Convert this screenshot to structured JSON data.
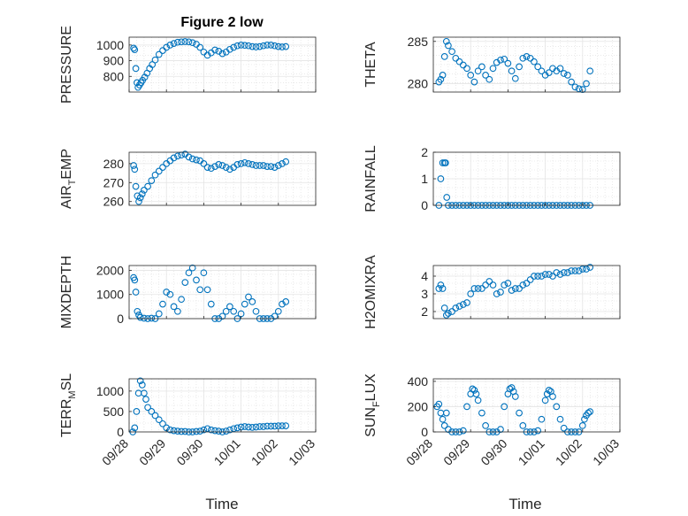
{
  "figure_title": "Figure 2 low",
  "x_axis_label": "Time",
  "x_tick_labels": [
    "09/28",
    "09/29",
    "09/30",
    "10/01",
    "10/02",
    "10/03"
  ],
  "colors": {
    "marker": "#0072BD",
    "axis": "#262626",
    "grid": "#dcdcdc"
  },
  "chart_data": [
    {
      "type": "scatter",
      "panel": "pressure",
      "ylabel": "PRESSURE",
      "ylim": [
        700,
        1050
      ],
      "yticks": [
        800,
        900,
        1000
      ],
      "xlim": [
        0,
        5
      ],
      "grid": true,
      "marker": "open-circle",
      "x": [
        0.12,
        0.15,
        0.18,
        0.21,
        0.24,
        0.28,
        0.32,
        0.36,
        0.42,
        0.48,
        0.55,
        0.62,
        0.7,
        0.8,
        0.9,
        1.0,
        1.1,
        1.2,
        1.3,
        1.4,
        1.5,
        1.6,
        1.7,
        1.8,
        1.9,
        2.0,
        2.1,
        2.2,
        2.3,
        2.4,
        2.5,
        2.6,
        2.7,
        2.8,
        2.9,
        3.0,
        3.1,
        3.2,
        3.3,
        3.4,
        3.5,
        3.6,
        3.7,
        3.8,
        3.9,
        4.0,
        4.1,
        4.2
      ],
      "y": [
        980,
        970,
        850,
        760,
        730,
        745,
        760,
        775,
        795,
        820,
        850,
        875,
        905,
        940,
        965,
        985,
        1000,
        1010,
        1018,
        1020,
        1022,
        1020,
        1015,
        1005,
        985,
        955,
        935,
        950,
        968,
        960,
        945,
        955,
        972,
        985,
        995,
        1000,
        998,
        995,
        990,
        988,
        990,
        995,
        1000,
        1000,
        995,
        990,
        988,
        990
      ]
    },
    {
      "type": "scatter",
      "panel": "theta",
      "ylabel": "THETA",
      "ylim": [
        279,
        285.5
      ],
      "yticks": [
        280,
        285
      ],
      "xlim": [
        0,
        5
      ],
      "grid": true,
      "marker": "open-circle",
      "x": [
        0.15,
        0.2,
        0.25,
        0.3,
        0.35,
        0.4,
        0.5,
        0.6,
        0.7,
        0.8,
        0.9,
        1.0,
        1.1,
        1.2,
        1.3,
        1.4,
        1.5,
        1.6,
        1.7,
        1.8,
        1.9,
        2.0,
        2.1,
        2.2,
        2.3,
        2.4,
        2.5,
        2.6,
        2.7,
        2.8,
        2.9,
        3.0,
        3.1,
        3.2,
        3.3,
        3.4,
        3.5,
        3.6,
        3.7,
        3.8,
        3.9,
        4.0,
        4.1,
        4.2
      ],
      "y": [
        280.2,
        280.5,
        281.0,
        283.2,
        285.0,
        284.5,
        283.8,
        283.0,
        282.6,
        282.2,
        281.8,
        281.0,
        280.2,
        281.5,
        282.0,
        281.0,
        280.5,
        281.8,
        282.5,
        282.8,
        282.9,
        282.4,
        281.5,
        280.6,
        282.0,
        283.0,
        283.2,
        283.0,
        282.6,
        282.0,
        281.5,
        281.0,
        281.3,
        281.8,
        281.5,
        281.8,
        281.2,
        281.0,
        280.2,
        279.6,
        279.4,
        279.3,
        280.0,
        281.5
      ]
    },
    {
      "type": "scatter",
      "panel": "air_temp",
      "ylabel": "AIR_TEMP",
      "ylim": [
        258,
        286
      ],
      "yticks": [
        260,
        270,
        280
      ],
      "xlim": [
        0,
        5
      ],
      "grid": true,
      "marker": "open-circle",
      "x": [
        0.12,
        0.15,
        0.18,
        0.22,
        0.26,
        0.3,
        0.35,
        0.4,
        0.5,
        0.6,
        0.7,
        0.8,
        0.9,
        1.0,
        1.1,
        1.2,
        1.3,
        1.4,
        1.5,
        1.6,
        1.7,
        1.8,
        1.9,
        2.0,
        2.1,
        2.2,
        2.3,
        2.4,
        2.5,
        2.6,
        2.7,
        2.8,
        2.9,
        3.0,
        3.1,
        3.2,
        3.3,
        3.4,
        3.5,
        3.6,
        3.7,
        3.8,
        3.9,
        4.0,
        4.1,
        4.2
      ],
      "y": [
        279,
        277,
        268,
        263,
        260,
        262,
        264,
        266,
        268,
        271,
        274,
        276,
        278,
        280,
        281.5,
        283,
        284,
        284.5,
        285,
        283.5,
        282.5,
        282,
        281.5,
        280,
        278,
        277.5,
        278.5,
        279.5,
        279,
        278,
        277,
        278,
        279.5,
        280,
        280.5,
        280,
        279.5,
        279,
        279,
        279,
        278.5,
        278.5,
        278,
        279,
        280,
        281
      ]
    },
    {
      "type": "scatter",
      "panel": "rainfall",
      "ylabel": "RAINFALL",
      "ylim": [
        0,
        2
      ],
      "yticks": [
        0,
        1,
        2
      ],
      "xlim": [
        0,
        5
      ],
      "grid": true,
      "marker": "open-circle",
      "x": [
        0.15,
        0.2,
        0.25,
        0.3,
        0.33,
        0.36,
        0.4,
        0.5,
        0.6,
        0.7,
        0.8,
        0.9,
        1.0,
        1.1,
        1.2,
        1.3,
        1.4,
        1.5,
        1.6,
        1.7,
        1.8,
        1.9,
        2.0,
        2.1,
        2.2,
        2.3,
        2.4,
        2.5,
        2.6,
        2.7,
        2.8,
        2.9,
        3.0,
        3.1,
        3.2,
        3.3,
        3.4,
        3.5,
        3.6,
        3.7,
        3.8,
        3.9,
        4.0,
        4.1,
        4.2
      ],
      "y": [
        0,
        1.0,
        1.6,
        1.6,
        1.6,
        0.3,
        0,
        0,
        0,
        0,
        0,
        0,
        0,
        0,
        0,
        0,
        0,
        0,
        0,
        0,
        0,
        0,
        0,
        0,
        0,
        0,
        0,
        0,
        0,
        0,
        0,
        0,
        0,
        0,
        0,
        0,
        0,
        0,
        0,
        0,
        0,
        0,
        0,
        0,
        0
      ]
    },
    {
      "type": "scatter",
      "panel": "mixdepth",
      "ylabel": "MIXDEPTH",
      "ylim": [
        0,
        2200
      ],
      "yticks": [
        0,
        1000,
        2000
      ],
      "xlim": [
        0,
        5
      ],
      "grid": true,
      "marker": "open-circle",
      "x": [
        0.12,
        0.15,
        0.18,
        0.22,
        0.26,
        0.3,
        0.4,
        0.5,
        0.6,
        0.7,
        0.8,
        0.9,
        1.0,
        1.1,
        1.2,
        1.3,
        1.4,
        1.5,
        1.6,
        1.7,
        1.8,
        1.9,
        2.0,
        2.1,
        2.2,
        2.3,
        2.4,
        2.5,
        2.6,
        2.7,
        2.8,
        2.9,
        3.0,
        3.1,
        3.2,
        3.3,
        3.4,
        3.5,
        3.6,
        3.7,
        3.8,
        3.9,
        4.0,
        4.1,
        4.2
      ],
      "y": [
        1700,
        1600,
        1100,
        300,
        150,
        50,
        20,
        0,
        20,
        0,
        200,
        600,
        1100,
        1000,
        500,
        300,
        800,
        1500,
        1900,
        2100,
        1600,
        1200,
        1900,
        1200,
        600,
        0,
        0,
        100,
        300,
        500,
        300,
        0,
        200,
        600,
        900,
        700,
        300,
        0,
        0,
        0,
        0,
        100,
        300,
        600,
        700
      ]
    },
    {
      "type": "scatter",
      "panel": "h2omixra",
      "ylabel": "H2OMIXRA",
      "ylim": [
        1.6,
        4.6
      ],
      "yticks": [
        2,
        3,
        4
      ],
      "xlim": [
        0,
        5
      ],
      "grid": true,
      "marker": "open-circle",
      "x": [
        0.15,
        0.2,
        0.25,
        0.3,
        0.35,
        0.4,
        0.5,
        0.6,
        0.7,
        0.8,
        0.9,
        1.0,
        1.1,
        1.2,
        1.3,
        1.4,
        1.5,
        1.6,
        1.7,
        1.8,
        1.9,
        2.0,
        2.1,
        2.2,
        2.3,
        2.4,
        2.5,
        2.6,
        2.7,
        2.8,
        2.9,
        3.0,
        3.1,
        3.2,
        3.3,
        3.4,
        3.5,
        3.6,
        3.7,
        3.8,
        3.9,
        4.0,
        4.1,
        4.2
      ],
      "y": [
        3.3,
        3.5,
        3.3,
        2.2,
        1.8,
        1.9,
        2.0,
        2.2,
        2.3,
        2.4,
        2.5,
        3.0,
        3.3,
        3.3,
        3.3,
        3.5,
        3.7,
        3.5,
        3.0,
        3.1,
        3.5,
        3.6,
        3.2,
        3.3,
        3.3,
        3.5,
        3.6,
        3.8,
        4.0,
        4.0,
        4.0,
        4.1,
        4.1,
        4.0,
        4.2,
        4.1,
        4.2,
        4.2,
        4.3,
        4.3,
        4.3,
        4.4,
        4.4,
        4.5
      ]
    },
    {
      "type": "scatter",
      "panel": "terrain",
      "ylabel": "TERR_MSL",
      "ylim": [
        0,
        1300
      ],
      "yticks": [
        0,
        500,
        1000
      ],
      "xlim": [
        0,
        5
      ],
      "grid": true,
      "marker": "open-circle",
      "x": [
        0.1,
        0.15,
        0.2,
        0.25,
        0.3,
        0.35,
        0.4,
        0.45,
        0.5,
        0.6,
        0.7,
        0.8,
        0.9,
        1.0,
        1.1,
        1.2,
        1.3,
        1.4,
        1.5,
        1.6,
        1.7,
        1.8,
        1.9,
        2.0,
        2.1,
        2.2,
        2.3,
        2.4,
        2.5,
        2.6,
        2.7,
        2.8,
        2.9,
        3.0,
        3.1,
        3.2,
        3.3,
        3.4,
        3.5,
        3.6,
        3.7,
        3.8,
        3.9,
        4.0,
        4.1,
        4.2
      ],
      "y": [
        0,
        100,
        500,
        950,
        1250,
        1150,
        950,
        800,
        600,
        500,
        400,
        300,
        200,
        100,
        50,
        30,
        20,
        10,
        10,
        0,
        0,
        10,
        20,
        50,
        80,
        50,
        30,
        20,
        0,
        20,
        50,
        80,
        100,
        120,
        130,
        120,
        110,
        120,
        130,
        130,
        140,
        140,
        140,
        150,
        150,
        150
      ]
    },
    {
      "type": "scatter",
      "panel": "sunflux",
      "ylabel": "SUN_FLUX",
      "ylim": [
        0,
        420
      ],
      "yticks": [
        0,
        200,
        400
      ],
      "xlim": [
        0,
        5
      ],
      "grid": true,
      "marker": "open-circle",
      "x": [
        0.1,
        0.15,
        0.2,
        0.25,
        0.3,
        0.35,
        0.4,
        0.5,
        0.6,
        0.7,
        0.8,
        0.9,
        1.0,
        1.05,
        1.1,
        1.15,
        1.2,
        1.3,
        1.4,
        1.5,
        1.6,
        1.7,
        1.8,
        1.9,
        2.0,
        2.05,
        2.1,
        2.15,
        2.2,
        2.3,
        2.4,
        2.5,
        2.6,
        2.7,
        2.8,
        2.9,
        3.0,
        3.05,
        3.1,
        3.15,
        3.2,
        3.3,
        3.4,
        3.5,
        3.6,
        3.7,
        3.8,
        3.9,
        4.0,
        4.05,
        4.1,
        4.15,
        4.2
      ],
      "y": [
        200,
        220,
        150,
        100,
        50,
        150,
        20,
        0,
        0,
        0,
        10,
        200,
        300,
        340,
        330,
        300,
        250,
        150,
        50,
        0,
        0,
        0,
        20,
        200,
        300,
        340,
        350,
        320,
        280,
        150,
        50,
        0,
        0,
        0,
        10,
        100,
        250,
        300,
        330,
        320,
        280,
        200,
        100,
        30,
        0,
        0,
        0,
        0,
        50,
        100,
        130,
        150,
        160
      ]
    }
  ]
}
